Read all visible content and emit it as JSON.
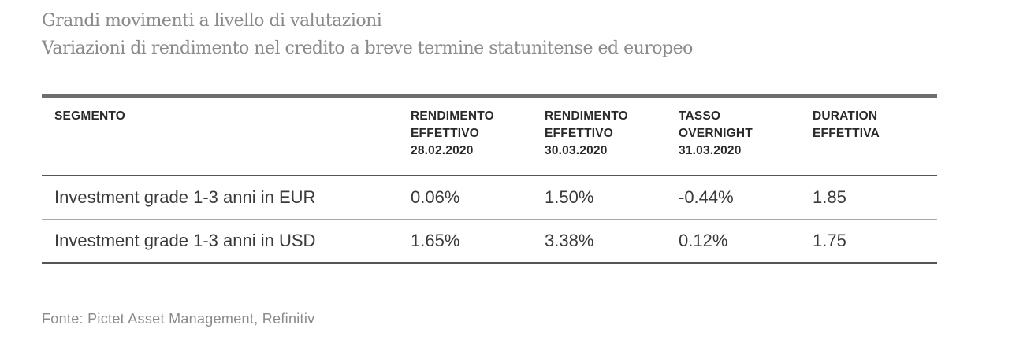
{
  "title": "Grandi movimenti a livello di valutazioni",
  "subtitle": "Variazioni di rendimento nel credito a breve termine statunitense ed europeo",
  "table": {
    "headers": [
      [
        "SEGMENTO"
      ],
      [
        "RENDIMENTO",
        "EFFETTIVO",
        "28.02.2020"
      ],
      [
        "RENDIMENTO",
        "EFFETTIVO",
        "30.03.2020"
      ],
      [
        "TASSO",
        "OVERNIGHT",
        "31.03.2020"
      ],
      [
        "DURATION",
        "EFFETTIVA"
      ]
    ],
    "rows": [
      [
        "Investment grade 1-3 anni in EUR",
        "0.06%",
        "1.50%",
        "-0.44%",
        "1.85"
      ],
      [
        "Investment grade 1-3 anni in USD",
        "1.65%",
        "3.38%",
        "0.12%",
        "1.75"
      ]
    ]
  },
  "source": "Fonte: Pictet Asset Management, Refinitiv"
}
